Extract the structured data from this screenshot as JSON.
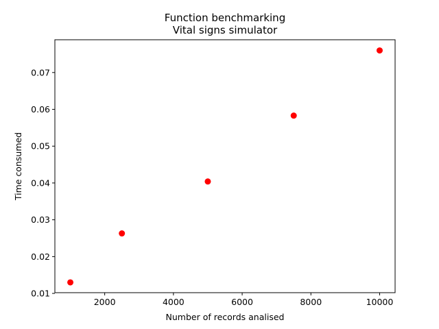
{
  "chart_data": {
    "type": "scatter",
    "title": "Function benchmarking",
    "subtitle": "Vital signs simulator",
    "xlabel": "Number of records analised",
    "ylabel": "Time consumed",
    "xlim": [
      550,
      10450
    ],
    "ylim": [
      0.0102,
      0.0789
    ],
    "xticks": [
      {
        "value": 2000,
        "label": "2000"
      },
      {
        "value": 4000,
        "label": "4000"
      },
      {
        "value": 6000,
        "label": "6000"
      },
      {
        "value": 8000,
        "label": "8000"
      },
      {
        "value": 10000,
        "label": "10000"
      }
    ],
    "yticks": [
      {
        "value": 0.01,
        "label": "0.01"
      },
      {
        "value": 0.02,
        "label": "0.02"
      },
      {
        "value": 0.03,
        "label": "0.03"
      },
      {
        "value": 0.04,
        "label": "0.04"
      },
      {
        "value": 0.05,
        "label": "0.05"
      },
      {
        "value": 0.06,
        "label": "0.06"
      },
      {
        "value": 0.07,
        "label": "0.07"
      }
    ],
    "grid": false,
    "series": [
      {
        "color": "#ff0000",
        "marker": "circle",
        "points": [
          {
            "x": 1000,
            "y": 0.013
          },
          {
            "x": 2500,
            "y": 0.0263
          },
          {
            "x": 5000,
            "y": 0.0404
          },
          {
            "x": 7500,
            "y": 0.0583
          },
          {
            "x": 10000,
            "y": 0.076
          }
        ]
      }
    ]
  }
}
